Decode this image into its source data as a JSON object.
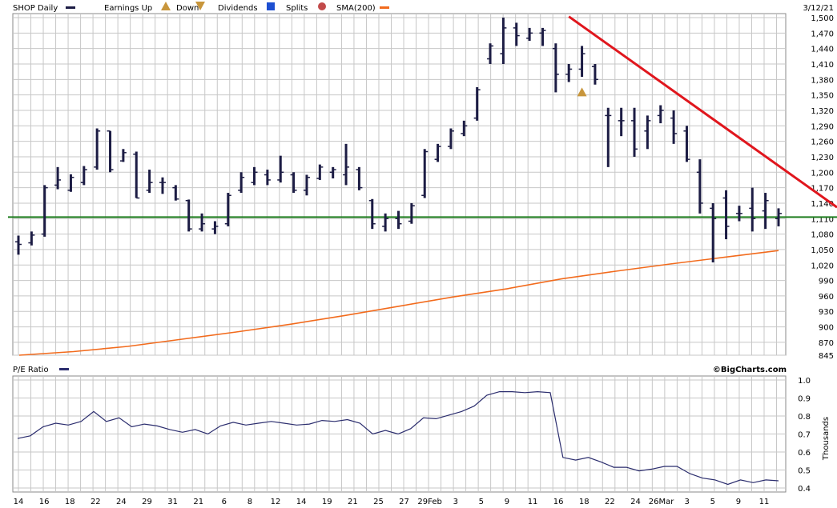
{
  "header": {
    "symbol_label": "SHOP Daily",
    "earnings_label": "Earnings Up",
    "down_label": "Down",
    "dividends_label": "Dividends",
    "splits_label": "Splits",
    "sma_label": "SMA(200)",
    "date": "3/12/21"
  },
  "pe_panel": {
    "label": "P/E Ratio",
    "brand": "©BigCharts.com",
    "units": "Thousands"
  },
  "colors": {
    "bars": "#1c1c44",
    "sma": "#f26b1d",
    "support": "#1e7d1e",
    "trend": "#e0161d",
    "pe_line": "#2b2d6e",
    "grid": "#c7c7c7",
    "earnings": "#c8963c",
    "dividends": "#1d4fd1",
    "splits": "#c24a4a"
  },
  "chart_data": [
    {
      "type": "ohlc",
      "ylim": [
        845,
        1500
      ],
      "y_ticks": [
        1500,
        1470,
        1440,
        1410,
        1380,
        1350,
        1320,
        1290,
        1260,
        1230,
        1200,
        1170,
        1140,
        1110,
        1080,
        1050,
        1020,
        990,
        960,
        930,
        900,
        870,
        845
      ],
      "x_tick_labels": [
        "14",
        "16",
        "18",
        "22",
        "24",
        "29",
        "31",
        "21",
        "6",
        "8",
        "12",
        "14",
        "19",
        "21",
        "25",
        "27",
        "29Feb",
        "3",
        "5",
        "9",
        "11",
        "16",
        "18",
        "22",
        "24",
        "26Mar",
        "3",
        "5",
        "9",
        "11"
      ],
      "bars": [
        {
          "h": 1077,
          "l": 1040,
          "o": 1065,
          "c": 1060
        },
        {
          "h": 1085,
          "l": 1058,
          "o": 1063,
          "c": 1078
        },
        {
          "h": 1175,
          "l": 1075,
          "o": 1080,
          "c": 1170
        },
        {
          "h": 1210,
          "l": 1167,
          "o": 1175,
          "c": 1185
        },
        {
          "h": 1196,
          "l": 1162,
          "o": 1165,
          "c": 1190
        },
        {
          "h": 1212,
          "l": 1175,
          "o": 1180,
          "c": 1205
        },
        {
          "h": 1285,
          "l": 1205,
          "o": 1210,
          "c": 1280
        },
        {
          "h": 1280,
          "l": 1200,
          "o": 1280,
          "c": 1205
        },
        {
          "h": 1245,
          "l": 1220,
          "o": 1222,
          "c": 1238
        },
        {
          "h": 1240,
          "l": 1150,
          "o": 1235,
          "c": 1150
        },
        {
          "h": 1205,
          "l": 1160,
          "o": 1165,
          "c": 1180
        },
        {
          "h": 1190,
          "l": 1158,
          "o": 1180,
          "c": 1180
        },
        {
          "h": 1175,
          "l": 1145,
          "o": 1170,
          "c": 1148
        },
        {
          "h": 1147,
          "l": 1085,
          "o": 1145,
          "c": 1090
        },
        {
          "h": 1120,
          "l": 1085,
          "o": 1090,
          "c": 1100
        },
        {
          "h": 1105,
          "l": 1080,
          "o": 1090,
          "c": 1095
        },
        {
          "h": 1160,
          "l": 1095,
          "o": 1100,
          "c": 1155
        },
        {
          "h": 1200,
          "l": 1160,
          "o": 1165,
          "c": 1190
        },
        {
          "h": 1210,
          "l": 1175,
          "o": 1180,
          "c": 1200
        },
        {
          "h": 1205,
          "l": 1175,
          "o": 1195,
          "c": 1185
        },
        {
          "h": 1232,
          "l": 1180,
          "o": 1185,
          "c": 1200
        },
        {
          "h": 1200,
          "l": 1160,
          "o": 1195,
          "c": 1165
        },
        {
          "h": 1195,
          "l": 1155,
          "o": 1165,
          "c": 1190
        },
        {
          "h": 1215,
          "l": 1185,
          "o": 1188,
          "c": 1210
        },
        {
          "h": 1210,
          "l": 1188,
          "o": 1200,
          "c": 1205
        },
        {
          "h": 1255,
          "l": 1175,
          "o": 1195,
          "c": 1210
        },
        {
          "h": 1210,
          "l": 1165,
          "o": 1205,
          "c": 1170
        },
        {
          "h": 1148,
          "l": 1090,
          "o": 1145,
          "c": 1100
        },
        {
          "h": 1120,
          "l": 1085,
          "o": 1095,
          "c": 1110
        },
        {
          "h": 1125,
          "l": 1090,
          "o": 1110,
          "c": 1100
        },
        {
          "h": 1140,
          "l": 1100,
          "o": 1105,
          "c": 1135
        },
        {
          "h": 1245,
          "l": 1150,
          "o": 1155,
          "c": 1240
        },
        {
          "h": 1255,
          "l": 1220,
          "o": 1225,
          "c": 1250
        },
        {
          "h": 1285,
          "l": 1245,
          "o": 1250,
          "c": 1280
        },
        {
          "h": 1300,
          "l": 1270,
          "o": 1275,
          "c": 1290
        },
        {
          "h": 1365,
          "l": 1300,
          "o": 1305,
          "c": 1360
        },
        {
          "h": 1450,
          "l": 1410,
          "o": 1420,
          "c": 1445
        },
        {
          "h": 1500,
          "l": 1410,
          "o": 1430,
          "c": 1480
        },
        {
          "h": 1490,
          "l": 1445,
          "o": 1480,
          "c": 1465
        },
        {
          "h": 1480,
          "l": 1455,
          "o": 1460,
          "c": 1470
        },
        {
          "h": 1480,
          "l": 1445,
          "o": 1470,
          "c": 1475
        },
        {
          "h": 1450,
          "l": 1355,
          "o": 1440,
          "c": 1390
        },
        {
          "h": 1410,
          "l": 1375,
          "o": 1390,
          "c": 1400
        },
        {
          "h": 1445,
          "l": 1385,
          "o": 1400,
          "c": 1430
        },
        {
          "h": 1410,
          "l": 1370,
          "o": 1405,
          "c": 1380
        },
        {
          "h": 1325,
          "l": 1210,
          "o": 1310,
          "c": 1310
        },
        {
          "h": 1325,
          "l": 1270,
          "o": 1300,
          "c": 1300
        },
        {
          "h": 1325,
          "l": 1230,
          "o": 1300,
          "c": 1245
        },
        {
          "h": 1310,
          "l": 1245,
          "o": 1280,
          "c": 1300
        },
        {
          "h": 1330,
          "l": 1295,
          "o": 1310,
          "c": 1320
        },
        {
          "h": 1320,
          "l": 1255,
          "o": 1305,
          "c": 1275
        },
        {
          "h": 1290,
          "l": 1220,
          "o": 1280,
          "c": 1225
        },
        {
          "h": 1225,
          "l": 1120,
          "o": 1200,
          "c": 1140
        },
        {
          "h": 1140,
          "l": 1025,
          "o": 1130,
          "c": 1110
        },
        {
          "h": 1165,
          "l": 1070,
          "o": 1150,
          "c": 1095
        },
        {
          "h": 1135,
          "l": 1105,
          "o": 1120,
          "c": 1120
        },
        {
          "h": 1170,
          "l": 1085,
          "o": 1130,
          "c": 1110
        },
        {
          "h": 1160,
          "l": 1090,
          "o": 1125,
          "c": 1145
        },
        {
          "h": 1130,
          "l": 1095,
          "o": 1110,
          "c": 1120
        }
      ],
      "sma": [
        845,
        852,
        862,
        876,
        890,
        905,
        922,
        940,
        958,
        974,
        993,
        1008,
        1022,
        1035,
        1048
      ],
      "support_level": 1113,
      "trend_line": {
        "from_bar": 42,
        "from_value": 1502,
        "to_value": 1132
      }
    },
    {
      "type": "line",
      "ylabel": "Thousands",
      "ylim": [
        0.4,
        1.0
      ],
      "y_ticks": [
        1.0,
        0.9,
        0.8,
        0.7,
        0.6,
        0.5,
        0.4
      ],
      "values": [
        0.675,
        0.69,
        0.74,
        0.76,
        0.75,
        0.77,
        0.825,
        0.77,
        0.79,
        0.74,
        0.755,
        0.745,
        0.725,
        0.71,
        0.725,
        0.7,
        0.745,
        0.765,
        0.75,
        0.76,
        0.77,
        0.76,
        0.75,
        0.755,
        0.775,
        0.77,
        0.78,
        0.76,
        0.7,
        0.72,
        0.7,
        0.73,
        0.79,
        0.785,
        0.805,
        0.825,
        0.855,
        0.915,
        0.935,
        0.935,
        0.93,
        0.935,
        0.93,
        0.57,
        0.555,
        0.57,
        0.545,
        0.515,
        0.515,
        0.495,
        0.505,
        0.52,
        0.52,
        0.48,
        0.455,
        0.445,
        0.42,
        0.445,
        0.43,
        0.445,
        0.44
      ]
    }
  ]
}
